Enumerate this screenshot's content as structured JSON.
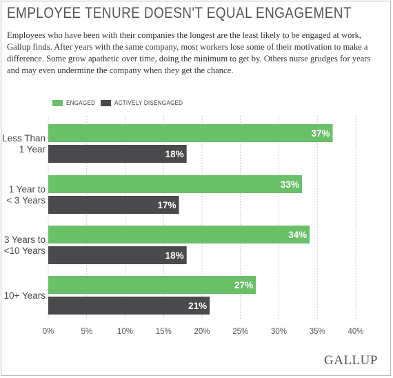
{
  "title": "EMPLOYEE TENURE DOESN'T EQUAL ENGAGEMENT",
  "subtitle": "Employees who have been with their companies the longest are the least likely to be engaged at work, Gallup finds. After years with the same company, most workers lose some of their motivation to make a difference. Some grow apathetic over time, doing the minimum to get by. Others nurse grudges for years and may even undermine the company when they get the chance.",
  "logo": "GALLUP",
  "colors": {
    "engaged": "#6abf69",
    "disengaged": "#4a4a4d",
    "grid": "#c8c8c8"
  },
  "chart_data": {
    "type": "bar",
    "orientation": "horizontal",
    "categories": [
      [
        "Less Than",
        "1 Year"
      ],
      [
        "1 Year to",
        "< 3 Years"
      ],
      [
        "3 Years to",
        "<10 Years"
      ],
      [
        "10+ Years"
      ]
    ],
    "series": [
      {
        "name": "ENGAGED",
        "values": [
          37,
          33,
          34,
          27
        ],
        "labels": [
          "37%",
          "33%",
          "34%",
          "27%"
        ]
      },
      {
        "name": "ACTIVELY DISENGAGED",
        "values": [
          18,
          17,
          18,
          21
        ],
        "labels": [
          "18%",
          "17%",
          "18%",
          "21%"
        ]
      }
    ],
    "xlim": [
      0,
      40
    ],
    "xticks": [
      0,
      5,
      10,
      15,
      20,
      25,
      30,
      35,
      40
    ],
    "xtick_labels": [
      "0%",
      "5%",
      "10%",
      "15%",
      "20%",
      "25%",
      "30%",
      "35%",
      "40%"
    ],
    "grid": true,
    "legend_position": "top-left",
    "xlabel": "",
    "ylabel": ""
  }
}
